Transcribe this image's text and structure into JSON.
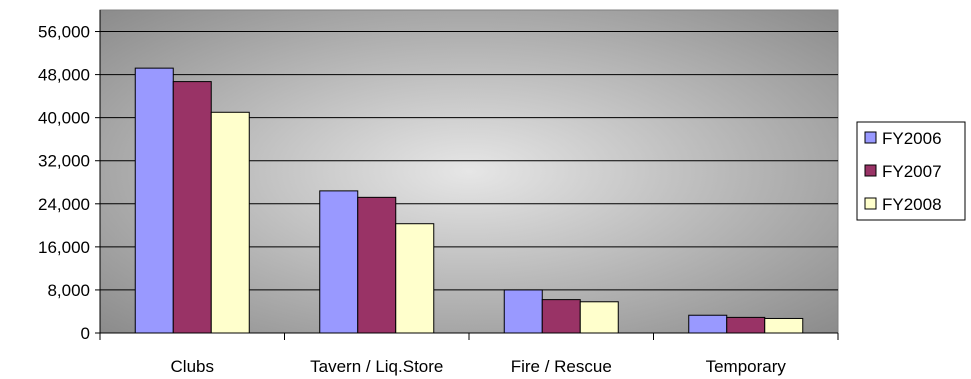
{
  "chart_data": {
    "type": "bar",
    "title": "",
    "xlabel": "",
    "ylabel": "",
    "categories": [
      "Clubs",
      "Tavern / Liq.Store",
      "Fire / Rescue",
      "Temporary"
    ],
    "series": [
      {
        "name": "FY2006",
        "values": [
          49200,
          26400,
          8000,
          3300
        ],
        "color": "#9999ff"
      },
      {
        "name": "FY2007",
        "values": [
          46700,
          25200,
          6200,
          2900
        ],
        "color": "#993366"
      },
      {
        "name": "FY2008",
        "values": [
          41000,
          20300,
          5800,
          2700
        ],
        "color": "#ffffcc"
      }
    ],
    "ylim": [
      0,
      60000
    ],
    "yticks": [
      0,
      8000,
      16000,
      24000,
      32000,
      40000,
      48000,
      56000
    ],
    "ytick_labels": [
      "0",
      "8,000",
      "16,000",
      "24,000",
      "32,000",
      "40,000",
      "48,000",
      "56,000"
    ],
    "grid": true,
    "legend_position": "right"
  }
}
